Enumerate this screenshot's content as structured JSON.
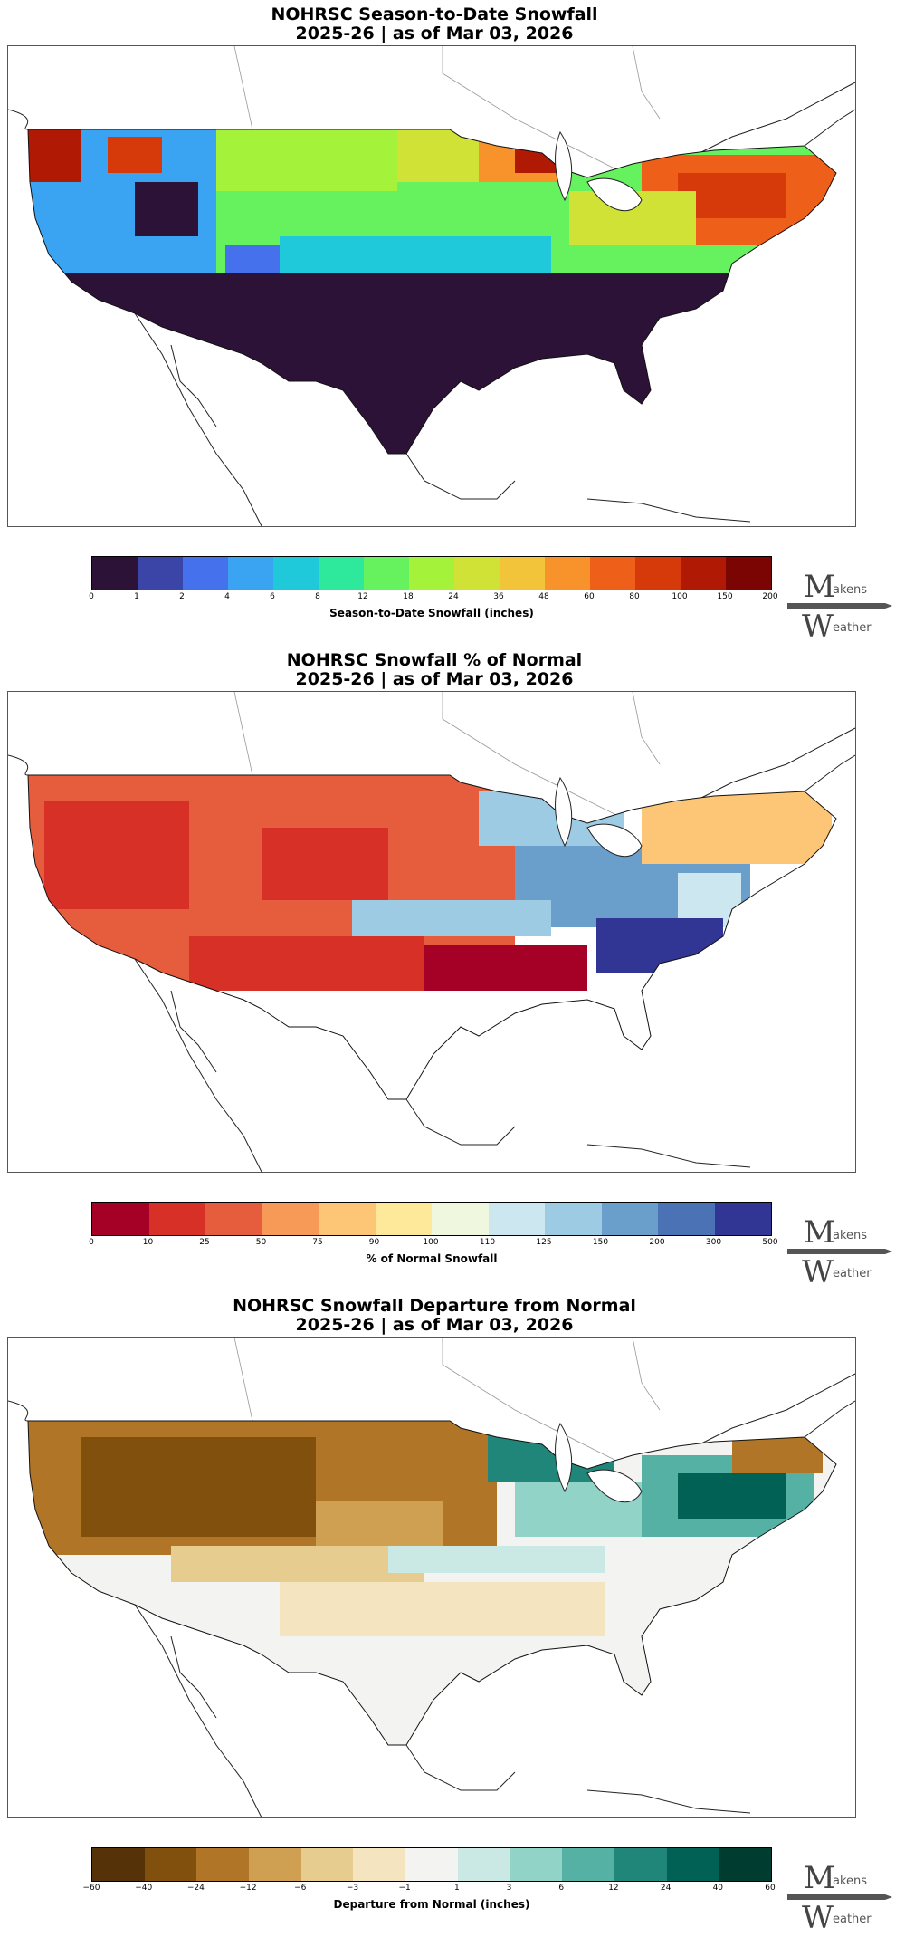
{
  "panels": [
    {
      "title_line1": "NOHRSC Season-to-Date Snowfall",
      "title_line2": "2025-26 | as of Mar 03, 2026",
      "colorbar_label": "Season-to-Date Snowfall (inches)",
      "ticks": [
        "0",
        "1",
        "2",
        "4",
        "6",
        "8",
        "12",
        "18",
        "24",
        "36",
        "48",
        "60",
        "80",
        "100",
        "150",
        "200"
      ],
      "colors": [
        "#2d1238",
        "#3b45a8",
        "#4671ec",
        "#3aa3f2",
        "#1fc9d9",
        "#2ee89c",
        "#66f15e",
        "#a5f23a",
        "#cfe235",
        "#f2c43a",
        "#f8932b",
        "#ee5f1a",
        "#d73a0a",
        "#b01a04",
        "#7b0503"
      ]
    },
    {
      "title_line1": "NOHRSC Snowfall % of Normal",
      "title_line2": "2025-26 | as of Mar 03, 2026",
      "colorbar_label": "% of Normal Snowfall",
      "ticks": [
        "0",
        "10",
        "25",
        "50",
        "75",
        "90",
        "100",
        "110",
        "125",
        "150",
        "200",
        "300",
        "500"
      ],
      "colors": [
        "#a50026",
        "#d73027",
        "#e65d3e",
        "#f79a58",
        "#fdc576",
        "#fee99a",
        "#eff8de",
        "#cde7f0",
        "#9dcbe3",
        "#6b9fcb",
        "#4a72b5",
        "#313695"
      ]
    },
    {
      "title_line1": "NOHRSC Snowfall Departure from Normal",
      "title_line2": "2025-26 | as of Mar 03, 2026",
      "colorbar_label": "Departure from Normal (inches)",
      "ticks": [
        "−60",
        "−40",
        "−24",
        "−12",
        "−6",
        "−3",
        "−1",
        "1",
        "3",
        "6",
        "12",
        "24",
        "40",
        "60"
      ],
      "colors": [
        "#553208",
        "#82500d",
        "#b07526",
        "#cfa052",
        "#e6cc8f",
        "#f4e4c0",
        "#f3f3f1",
        "#cbe9e4",
        "#91d3c7",
        "#55b1a4",
        "#1f8679",
        "#016155",
        "#003c30"
      ]
    }
  ],
  "logo": {
    "top_word": "akens",
    "bottom_word": "eather",
    "top_letter": "M",
    "bottom_letter": "W"
  }
}
